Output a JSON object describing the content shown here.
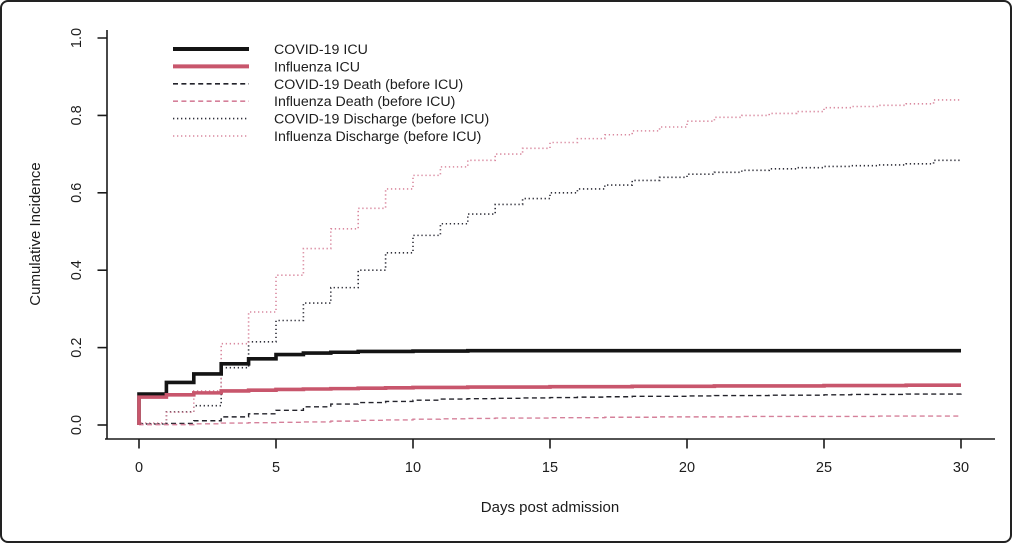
{
  "chart_data": {
    "type": "line",
    "subtype": "step-cumulative-incidence",
    "title": "",
    "xlabel": "Days post admission",
    "ylabel": "Cumulative Incidence",
    "xlim": [
      0,
      30
    ],
    "ylim": [
      0.0,
      1.0
    ],
    "xticks": [
      0,
      5,
      10,
      15,
      20,
      25,
      30
    ],
    "ytick_labels": [
      "0.0",
      "0.2",
      "0.4",
      "0.6",
      "0.8",
      "1.0"
    ],
    "ytick_values": [
      0.0,
      0.2,
      0.4,
      0.6,
      0.8,
      1.0
    ],
    "grid": false,
    "legend_position": "top-left-inside",
    "axis_color": "#1a1a1a",
    "x": [
      0,
      1,
      2,
      3,
      4,
      5,
      6,
      7,
      8,
      9,
      10,
      11,
      12,
      13,
      14,
      15,
      16,
      17,
      18,
      19,
      20,
      21,
      22,
      23,
      24,
      25,
      26,
      27,
      28,
      29,
      30
    ],
    "series": [
      {
        "name": "COVID-19 ICU",
        "color": "#141414",
        "style": "solid",
        "values": [
          0.08,
          0.11,
          0.132,
          0.158,
          0.171,
          0.182,
          0.186,
          0.188,
          0.19,
          0.19,
          0.191,
          0.191,
          0.192,
          0.192,
          0.192,
          0.192,
          0.192,
          0.192,
          0.192,
          0.192,
          0.192,
          0.192,
          0.192,
          0.192,
          0.192,
          0.192,
          0.192,
          0.192,
          0.192,
          0.192,
          0.192
        ]
      },
      {
        "name": "Influenza ICU",
        "color": "#c8566c",
        "style": "solid",
        "values": [
          0.072,
          0.078,
          0.083,
          0.088,
          0.09,
          0.092,
          0.093,
          0.094,
          0.095,
          0.096,
          0.097,
          0.097,
          0.098,
          0.098,
          0.098,
          0.099,
          0.099,
          0.099,
          0.1,
          0.1,
          0.1,
          0.101,
          0.101,
          0.101,
          0.101,
          0.102,
          0.102,
          0.102,
          0.103,
          0.103,
          0.103
        ]
      },
      {
        "name": "COVID-19 Death (before ICU)",
        "color": "#23232b",
        "style": "dashed",
        "values": [
          0.002,
          0.004,
          0.011,
          0.021,
          0.029,
          0.038,
          0.047,
          0.054,
          0.058,
          0.061,
          0.064,
          0.067,
          0.068,
          0.069,
          0.07,
          0.071,
          0.072,
          0.073,
          0.074,
          0.074,
          0.075,
          0.076,
          0.076,
          0.077,
          0.077,
          0.078,
          0.079,
          0.079,
          0.08,
          0.08,
          0.081
        ]
      },
      {
        "name": "Influenza Death (before ICU)",
        "color": "#d5809a",
        "style": "dashed",
        "values": [
          0.001,
          0.001,
          0.003,
          0.005,
          0.006,
          0.007,
          0.008,
          0.01,
          0.012,
          0.013,
          0.015,
          0.016,
          0.017,
          0.018,
          0.018,
          0.019,
          0.019,
          0.02,
          0.02,
          0.021,
          0.021,
          0.021,
          0.022,
          0.022,
          0.022,
          0.022,
          0.022,
          0.023,
          0.023,
          0.023,
          0.023
        ]
      },
      {
        "name": "COVID-19 Discharge (before ICU)",
        "color": "#2e2e38",
        "style": "dotted",
        "values": [
          0.003,
          0.034,
          0.05,
          0.148,
          0.215,
          0.27,
          0.315,
          0.355,
          0.4,
          0.445,
          0.49,
          0.52,
          0.545,
          0.57,
          0.585,
          0.6,
          0.61,
          0.62,
          0.632,
          0.64,
          0.648,
          0.653,
          0.658,
          0.662,
          0.665,
          0.668,
          0.67,
          0.672,
          0.675,
          0.684,
          0.685
        ]
      },
      {
        "name": "Influenza Discharge (before ICU)",
        "color": "#d9899f",
        "style": "dotted",
        "values": [
          0.005,
          0.033,
          0.088,
          0.21,
          0.292,
          0.387,
          0.456,
          0.507,
          0.56,
          0.61,
          0.645,
          0.667,
          0.684,
          0.7,
          0.715,
          0.73,
          0.74,
          0.75,
          0.76,
          0.77,
          0.785,
          0.795,
          0.8,
          0.805,
          0.81,
          0.82,
          0.823,
          0.826,
          0.83,
          0.84,
          0.84
        ]
      }
    ]
  }
}
